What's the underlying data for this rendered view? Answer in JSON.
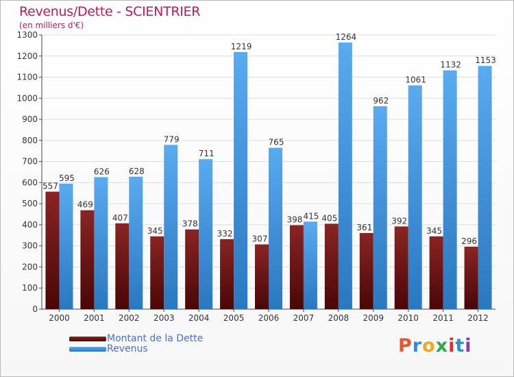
{
  "header": {
    "title": "Revenus/Dette - SCIENTRIER",
    "subtitle": "(en milliers d'€)"
  },
  "legend": {
    "dette_label": "Montant de la Dette",
    "revenus_label": "Revenus"
  },
  "logo": {
    "text": "Proxiti",
    "colors": [
      "#e8542b",
      "#2e8fd6",
      "#f2a51e",
      "#2fa84f",
      "#d8312f",
      "#2e8fd6",
      "#8c3ca8"
    ]
  },
  "colors": {
    "dette": "#6b0f0f",
    "revenus": "#3a8fd8",
    "title": "#c2185b",
    "axis_text": "#333333",
    "grid": "#dddddd"
  },
  "chart_data": {
    "type": "bar",
    "title": "Revenus/Dette - SCIENTRIER",
    "ylabel": "(en milliers d'€)",
    "xlabel": "",
    "categories": [
      "2000",
      "2001",
      "2002",
      "2003",
      "2004",
      "2005",
      "2006",
      "2007",
      "2008",
      "2009",
      "2010",
      "2011",
      "2012"
    ],
    "series": [
      {
        "name": "Montant de la Dette",
        "values": [
          557,
          469,
          407,
          345,
          378,
          332,
          307,
          398,
          405,
          361,
          392,
          345,
          296
        ]
      },
      {
        "name": "Revenus",
        "values": [
          595,
          626,
          628,
          779,
          711,
          1219,
          765,
          415,
          1264,
          962,
          1061,
          1132,
          1153
        ]
      }
    ],
    "ylim": [
      0,
      1300
    ],
    "yticks": [
      0,
      100,
      200,
      300,
      400,
      500,
      600,
      700,
      800,
      900,
      1000,
      1100,
      1200,
      1300
    ],
    "grid": true,
    "legend_position": "bottom-left"
  }
}
